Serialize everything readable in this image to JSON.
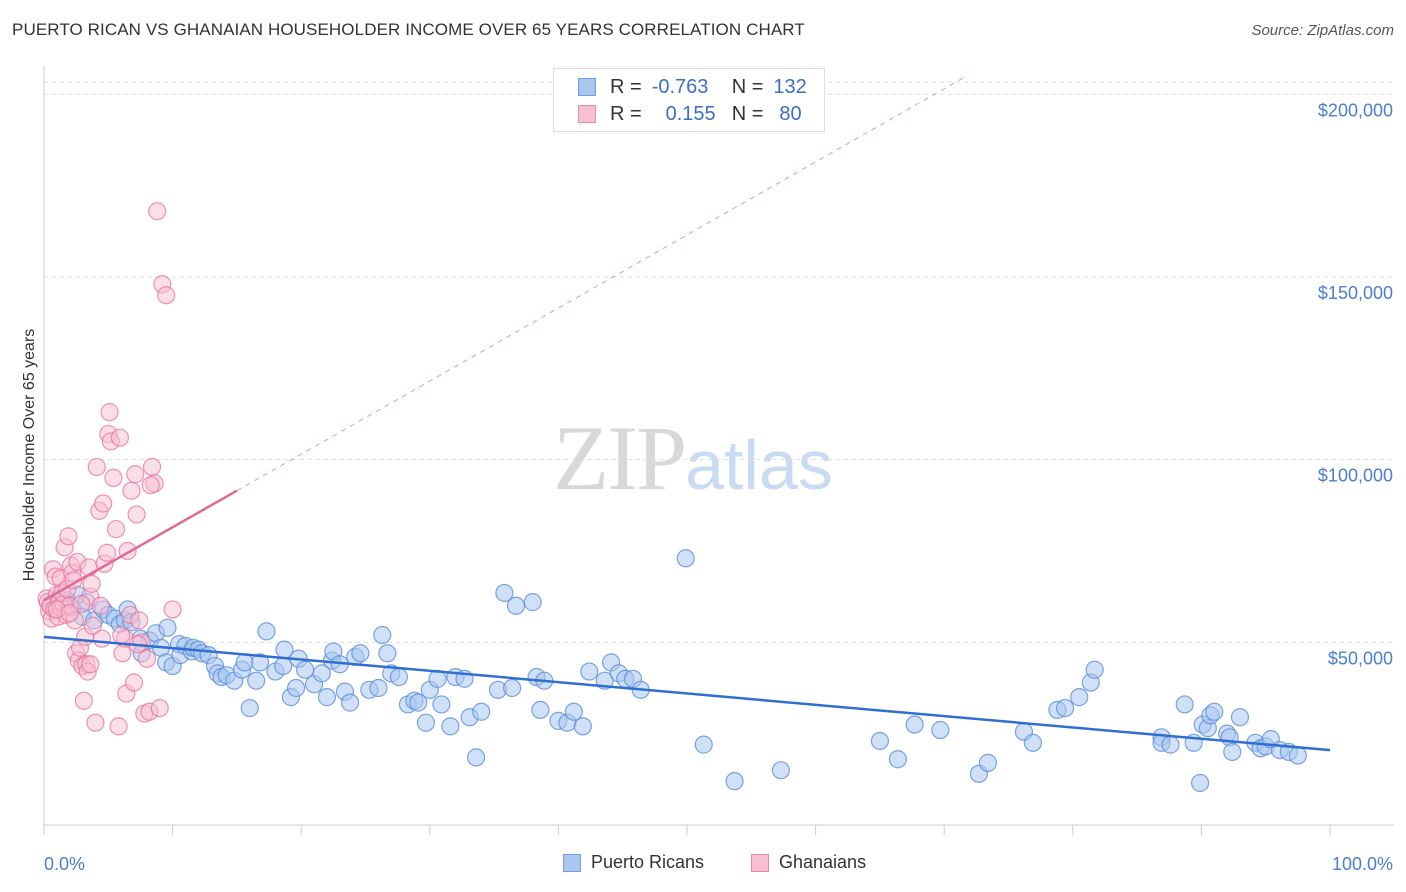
{
  "header": {
    "title": "PUERTO RICAN VS GHANAIAN HOUSEHOLDER INCOME OVER 65 YEARS CORRELATION CHART",
    "source": "Source: ZipAtlas.com"
  },
  "watermark": {
    "zip": "ZIP",
    "atlas": "atlas"
  },
  "legend": {
    "rows": [
      {
        "r_label": "R =",
        "r_value": "-0.763",
        "n_label": "N =",
        "n_value": "132",
        "color": "#a9c6ef",
        "border": "#6f9fe0"
      },
      {
        "r_label": "R =",
        "r_value": "0.155",
        "n_label": "N =",
        "n_value": "80",
        "color": "#f7bfd1",
        "border": "#e98aab"
      }
    ],
    "bottom": [
      {
        "label": "Puerto Ricans",
        "color": "#a9c6ef",
        "border": "#6f9fe0"
      },
      {
        "label": "Ghanaians",
        "color": "#f7bfd1",
        "border": "#e98aab"
      }
    ]
  },
  "colors": {
    "blue": "#4a86d8",
    "blue_line": "#2f6fd0",
    "pink": "#e66e98",
    "pink_line": "#e06a95",
    "grid": "#dddddd",
    "axis_text": "#4a7fd4"
  },
  "chart_data": {
    "type": "scatter",
    "title": "PUERTO RICAN VS GHANAIAN HOUSEHOLDER INCOME OVER 65 YEARS CORRELATION CHART",
    "xlabel": "",
    "ylabel": "Householder Income Over 65 years",
    "xlim": [
      0,
      100
    ],
    "ylim": [
      0,
      205000
    ],
    "x_tick_labels": [
      "0.0%",
      "100.0%"
    ],
    "y_ticks": [
      50000,
      100000,
      150000,
      200000
    ],
    "y_tick_labels": [
      "$50,000",
      "$100,000",
      "$150,000",
      "$200,000"
    ],
    "grid": "horizontal dashed",
    "series": [
      {
        "name": "Puerto Ricans",
        "r": -0.763,
        "n": 132,
        "trend": {
          "x": [
            0,
            100
          ],
          "y": [
            51500,
            20500
          ]
        },
        "points": [
          [
            0.5,
            60500
          ],
          [
            0.9,
            59000
          ],
          [
            1.2,
            62000
          ],
          [
            1.5,
            60000
          ],
          [
            1.8,
            61500
          ],
          [
            2.2,
            59500
          ],
          [
            2.6,
            63000
          ],
          [
            3.0,
            57000
          ],
          [
            3.3,
            61000
          ],
          [
            3.9,
            56000
          ],
          [
            4.6,
            59000
          ],
          [
            5.0,
            57500
          ],
          [
            5.5,
            56500
          ],
          [
            5.9,
            55000
          ],
          [
            6.3,
            56000
          ],
          [
            6.5,
            59000
          ],
          [
            6.8,
            55500
          ],
          [
            7.5,
            51000
          ],
          [
            7.6,
            47000
          ],
          [
            8.2,
            50500
          ],
          [
            8.7,
            52500
          ],
          [
            9.1,
            48500
          ],
          [
            9.5,
            44500
          ],
          [
            9.6,
            54000
          ],
          [
            10.0,
            43500
          ],
          [
            10.5,
            49500
          ],
          [
            10.6,
            46500
          ],
          [
            11.0,
            49000
          ],
          [
            11.5,
            47500
          ],
          [
            11.6,
            48500
          ],
          [
            12.0,
            48000
          ],
          [
            12.3,
            47000
          ],
          [
            12.8,
            46500
          ],
          [
            13.3,
            43500
          ],
          [
            13.5,
            41500
          ],
          [
            13.8,
            40500
          ],
          [
            14.2,
            41000
          ],
          [
            14.8,
            39500
          ],
          [
            15.4,
            42500
          ],
          [
            15.6,
            44500
          ],
          [
            16.0,
            32000
          ],
          [
            16.5,
            39500
          ],
          [
            16.8,
            44500
          ],
          [
            17.3,
            53000
          ],
          [
            18.0,
            42000
          ],
          [
            18.6,
            43500
          ],
          [
            18.7,
            48000
          ],
          [
            19.2,
            35000
          ],
          [
            19.6,
            37500
          ],
          [
            19.8,
            45500
          ],
          [
            20.3,
            42500
          ],
          [
            21.0,
            38500
          ],
          [
            21.6,
            41500
          ],
          [
            22.0,
            35000
          ],
          [
            22.4,
            45000
          ],
          [
            22.5,
            47500
          ],
          [
            23.0,
            44000
          ],
          [
            23.4,
            36500
          ],
          [
            23.8,
            33500
          ],
          [
            24.2,
            46000
          ],
          [
            24.6,
            47000
          ],
          [
            25.3,
            37000
          ],
          [
            26.0,
            37500
          ],
          [
            26.3,
            52000
          ],
          [
            26.7,
            47000
          ],
          [
            27.0,
            41500
          ],
          [
            27.6,
            40500
          ],
          [
            28.3,
            33000
          ],
          [
            28.8,
            34000
          ],
          [
            29.1,
            33500
          ],
          [
            29.7,
            28000
          ],
          [
            30.0,
            37000
          ],
          [
            30.6,
            40000
          ],
          [
            30.9,
            33000
          ],
          [
            31.6,
            27000
          ],
          [
            32.0,
            40500
          ],
          [
            32.7,
            40000
          ],
          [
            33.1,
            29500
          ],
          [
            33.6,
            18500
          ],
          [
            34.0,
            31000
          ],
          [
            35.3,
            37000
          ],
          [
            35.8,
            63500
          ],
          [
            36.4,
            37500
          ],
          [
            36.7,
            60000
          ],
          [
            38.0,
            61000
          ],
          [
            38.3,
            40500
          ],
          [
            38.6,
            31500
          ],
          [
            38.9,
            39500
          ],
          [
            40.0,
            28500
          ],
          [
            40.7,
            28000
          ],
          [
            41.2,
            31000
          ],
          [
            41.9,
            27000
          ],
          [
            42.4,
            42000
          ],
          [
            43.6,
            39500
          ],
          [
            44.1,
            44500
          ],
          [
            44.7,
            41500
          ],
          [
            45.2,
            40000
          ],
          [
            45.8,
            40000
          ],
          [
            46.4,
            37000
          ],
          [
            49.9,
            73000
          ],
          [
            51.3,
            22000
          ],
          [
            53.7,
            12000
          ],
          [
            57.3,
            15000
          ],
          [
            65.0,
            23000
          ],
          [
            66.4,
            18000
          ],
          [
            67.7,
            27500
          ],
          [
            69.7,
            26000
          ],
          [
            72.7,
            14000
          ],
          [
            73.4,
            17000
          ],
          [
            76.2,
            25500
          ],
          [
            76.9,
            22500
          ],
          [
            78.8,
            31500
          ],
          [
            79.4,
            32000
          ],
          [
            80.5,
            35000
          ],
          [
            81.4,
            39000
          ],
          [
            81.7,
            42500
          ],
          [
            86.9,
            24000
          ],
          [
            86.9,
            22500
          ],
          [
            87.6,
            22000
          ],
          [
            88.7,
            33000
          ],
          [
            89.4,
            22500
          ],
          [
            89.9,
            11500
          ],
          [
            90.1,
            27500
          ],
          [
            90.5,
            26500
          ],
          [
            90.7,
            30000
          ],
          [
            91.0,
            31000
          ],
          [
            92.0,
            25000
          ],
          [
            92.2,
            24000
          ],
          [
            92.4,
            20000
          ],
          [
            93.0,
            29500
          ],
          [
            94.2,
            22500
          ],
          [
            94.6,
            21000
          ],
          [
            95.0,
            21500
          ],
          [
            95.4,
            23500
          ],
          [
            96.1,
            20500
          ],
          [
            96.8,
            20000
          ],
          [
            97.5,
            19000
          ]
        ]
      },
      {
        "name": "Ghanaians",
        "r": 0.155,
        "n": 80,
        "trend": {
          "x": [
            0,
            15
          ],
          "y": [
            61500,
            91500
          ]
        },
        "points": [
          [
            0.2,
            62000
          ],
          [
            0.3,
            61000
          ],
          [
            0.4,
            58500
          ],
          [
            0.5,
            60000
          ],
          [
            0.6,
            56500
          ],
          [
            0.7,
            70000
          ],
          [
            0.8,
            59000
          ],
          [
            0.9,
            68000
          ],
          [
            1.0,
            63000
          ],
          [
            1.1,
            57000
          ],
          [
            1.2,
            61000
          ],
          [
            1.3,
            59500
          ],
          [
            1.3,
            67500
          ],
          [
            1.4,
            63500
          ],
          [
            1.5,
            60500
          ],
          [
            1.6,
            76000
          ],
          [
            1.7,
            57500
          ],
          [
            1.8,
            64500
          ],
          [
            1.9,
            79000
          ],
          [
            2.0,
            60000
          ],
          [
            2.1,
            71000
          ],
          [
            2.2,
            69000
          ],
          [
            2.3,
            67000
          ],
          [
            2.4,
            56000
          ],
          [
            2.5,
            47000
          ],
          [
            2.6,
            72000
          ],
          [
            2.7,
            45000
          ],
          [
            2.8,
            48500
          ],
          [
            3.0,
            43500
          ],
          [
            3.1,
            34000
          ],
          [
            3.2,
            51500
          ],
          [
            3.3,
            44000
          ],
          [
            3.4,
            42000
          ],
          [
            3.5,
            70500
          ],
          [
            3.6,
            62500
          ],
          [
            3.7,
            66000
          ],
          [
            3.8,
            54500
          ],
          [
            4.0,
            28000
          ],
          [
            4.1,
            98000
          ],
          [
            4.3,
            86000
          ],
          [
            4.4,
            60000
          ],
          [
            4.6,
            88000
          ],
          [
            4.7,
            71500
          ],
          [
            4.9,
            74500
          ],
          [
            5.0,
            107000
          ],
          [
            5.1,
            113000
          ],
          [
            5.2,
            105000
          ],
          [
            5.4,
            95000
          ],
          [
            5.6,
            81000
          ],
          [
            5.8,
            27000
          ],
          [
            5.9,
            106000
          ],
          [
            6.1,
            47000
          ],
          [
            6.3,
            51000
          ],
          [
            6.4,
            36000
          ],
          [
            6.5,
            75000
          ],
          [
            6.7,
            57500
          ],
          [
            6.8,
            91500
          ],
          [
            7.0,
            39000
          ],
          [
            7.1,
            96000
          ],
          [
            7.2,
            85000
          ],
          [
            7.4,
            56000
          ],
          [
            7.6,
            50000
          ],
          [
            7.8,
            30500
          ],
          [
            8.0,
            45500
          ],
          [
            8.2,
            31000
          ],
          [
            8.4,
            98000
          ],
          [
            8.6,
            93500
          ],
          [
            8.8,
            168000
          ],
          [
            9.0,
            32000
          ],
          [
            9.2,
            148000
          ],
          [
            9.5,
            145000
          ],
          [
            10.0,
            59000
          ],
          [
            3.6,
            44000
          ],
          [
            2.9,
            60500
          ],
          [
            1.0,
            59000
          ],
          [
            2.0,
            58000
          ],
          [
            4.5,
            51000
          ],
          [
            6.0,
            52000
          ],
          [
            7.3,
            49500
          ],
          [
            8.3,
            93000
          ]
        ]
      }
    ]
  }
}
